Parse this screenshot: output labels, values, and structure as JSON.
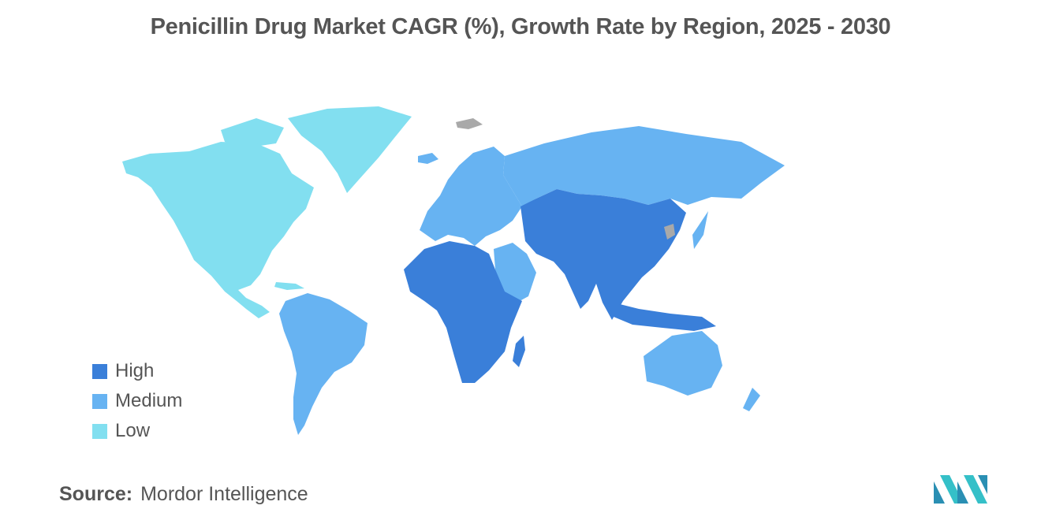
{
  "title": "Penicillin Drug Market CAGR (%), Growth Rate by Region, 2025 - 2030",
  "colors": {
    "high": "#3a7fd9",
    "medium": "#67b3f2",
    "low": "#82dff0",
    "no_data": "#a9a9a9"
  },
  "legend": {
    "items": [
      {
        "label": "High",
        "color": "#3a7fd9"
      },
      {
        "label": "Medium",
        "color": "#67b3f2"
      },
      {
        "label": "Low",
        "color": "#82dff0"
      }
    ]
  },
  "source": {
    "label": "Source:",
    "value": "Mordor Intelligence"
  },
  "logo": {
    "icon": "mordor-intelligence-logo-icon"
  }
}
